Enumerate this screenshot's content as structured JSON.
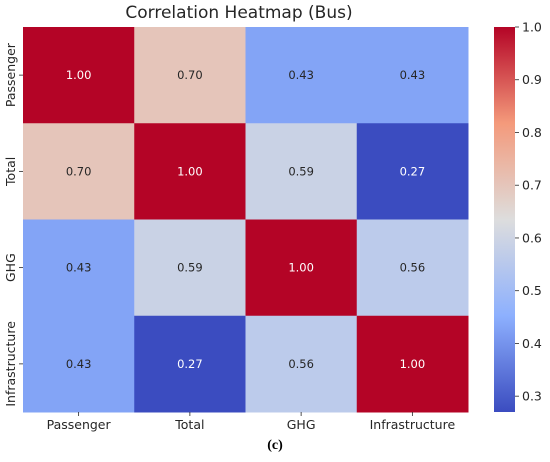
{
  "caption": "(c)",
  "chart_data": {
    "type": "heatmap",
    "title": "Correlation Heatmap (Bus)",
    "x_labels": [
      "Passenger",
      "Total",
      "GHG",
      "Infrastructure"
    ],
    "y_labels": [
      "Passenger",
      "Total",
      "GHG",
      "Infrastructure"
    ],
    "values": [
      [
        1.0,
        0.7,
        0.43,
        0.43
      ],
      [
        0.7,
        1.0,
        0.59,
        0.27
      ],
      [
        0.43,
        0.59,
        1.0,
        0.56
      ],
      [
        0.43,
        0.27,
        0.56,
        1.0
      ]
    ],
    "value_format": "0.00",
    "colormap": "coolwarm",
    "colorbar": {
      "range": [
        0.27,
        1.0
      ],
      "ticks": [
        "1.0",
        "0.9",
        "0.8",
        "0.7",
        "0.6",
        "0.5",
        "0.4",
        "0.3"
      ]
    }
  }
}
